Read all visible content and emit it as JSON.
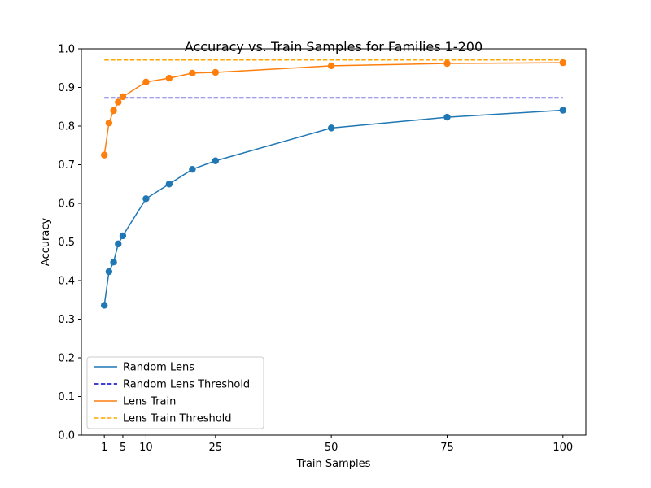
{
  "chart_data": {
    "type": "line",
    "title": "Accuracy vs. Train Samples for Families 1-200",
    "xlabel": "Train Samples",
    "ylabel": "Accuracy",
    "xlim": [
      -3.95,
      104.95
    ],
    "ylim": [
      0.0,
      1.0
    ],
    "xticks": [
      1,
      5,
      10,
      25,
      50,
      75,
      100
    ],
    "xtick_labels": [
      "1",
      "5",
      "10",
      "25",
      "50",
      "75",
      "100"
    ],
    "yticks": [
      0.0,
      0.1,
      0.2,
      0.3,
      0.4,
      0.5,
      0.6,
      0.7,
      0.8,
      0.9,
      1.0
    ],
    "ytick_labels": [
      "0.0",
      "0.1",
      "0.2",
      "0.3",
      "0.4",
      "0.5",
      "0.6",
      "0.7",
      "0.8",
      "0.9",
      "1.0"
    ],
    "grid": false,
    "legend_position": "lower-left",
    "series": [
      {
        "name": "Random Lens",
        "kind": "line-markers",
        "color": "#1f77b4",
        "x": [
          1,
          2,
          3,
          4,
          5,
          10,
          15,
          20,
          25,
          50,
          75,
          100
        ],
        "y": [
          0.336,
          0.423,
          0.448,
          0.495,
          0.516,
          0.612,
          0.65,
          0.688,
          0.71,
          0.795,
          0.823,
          0.841
        ]
      },
      {
        "name": "Random Lens Threshold",
        "kind": "dashed",
        "color": "#0000cc",
        "x": [
          1,
          100
        ],
        "y": [
          0.873,
          0.873
        ]
      },
      {
        "name": "Lens Train",
        "kind": "line-markers",
        "color": "#ff7f0e",
        "x": [
          1,
          2,
          3,
          4,
          5,
          10,
          15,
          20,
          25,
          50,
          75,
          100
        ],
        "y": [
          0.725,
          0.808,
          0.84,
          0.862,
          0.876,
          0.914,
          0.924,
          0.937,
          0.939,
          0.956,
          0.962,
          0.964
        ]
      },
      {
        "name": "Lens Train Threshold",
        "kind": "dashed",
        "color": "#ffa500",
        "x": [
          1,
          100
        ],
        "y": [
          0.971,
          0.971
        ]
      }
    ]
  }
}
